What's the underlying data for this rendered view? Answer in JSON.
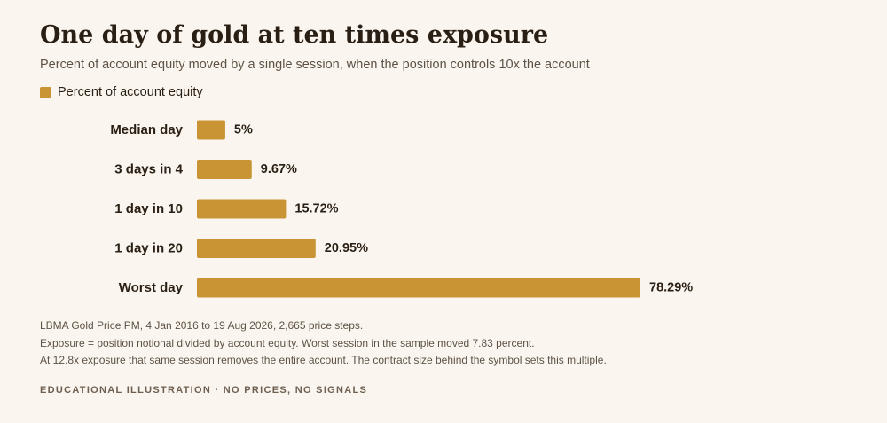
{
  "header": {
    "title": "One day of gold at ten times exposure",
    "subtitle": "Percent of account equity moved by a single session, when the position controls 10x the account"
  },
  "legend": {
    "label": "Percent of account equity",
    "color": "#c99433"
  },
  "chart_data": {
    "type": "bar",
    "orientation": "horizontal",
    "categories": [
      "Median day",
      "3 days in 4",
      "1 day in 10",
      "1 day in 20",
      "Worst day"
    ],
    "series": [
      {
        "name": "Percent of account equity",
        "values": [
          5,
          9.67,
          15.72,
          20.95,
          78.29
        ],
        "value_labels": [
          "5%",
          "9.67%",
          "15.72%",
          "20.95%",
          "78.29%"
        ]
      }
    ],
    "xlim": [
      0,
      78.29
    ],
    "grid": false,
    "legend_position": "top-left",
    "bar_color": "#c99433"
  },
  "notes": {
    "lines": [
      "LBMA Gold Price PM, 4 Jan 2016 to 19 Aug 2026, 2,665 price steps.",
      "Exposure = position notional divided by account equity. Worst session in the sample moved 7.83 percent.",
      "At 12.8x exposure that same session removes the entire account. The contract size behind the symbol sets this multiple."
    ]
  },
  "footer": {
    "text": "EDUCATIONAL ILLUSTRATION · NO PRICES, NO SIGNALS"
  }
}
